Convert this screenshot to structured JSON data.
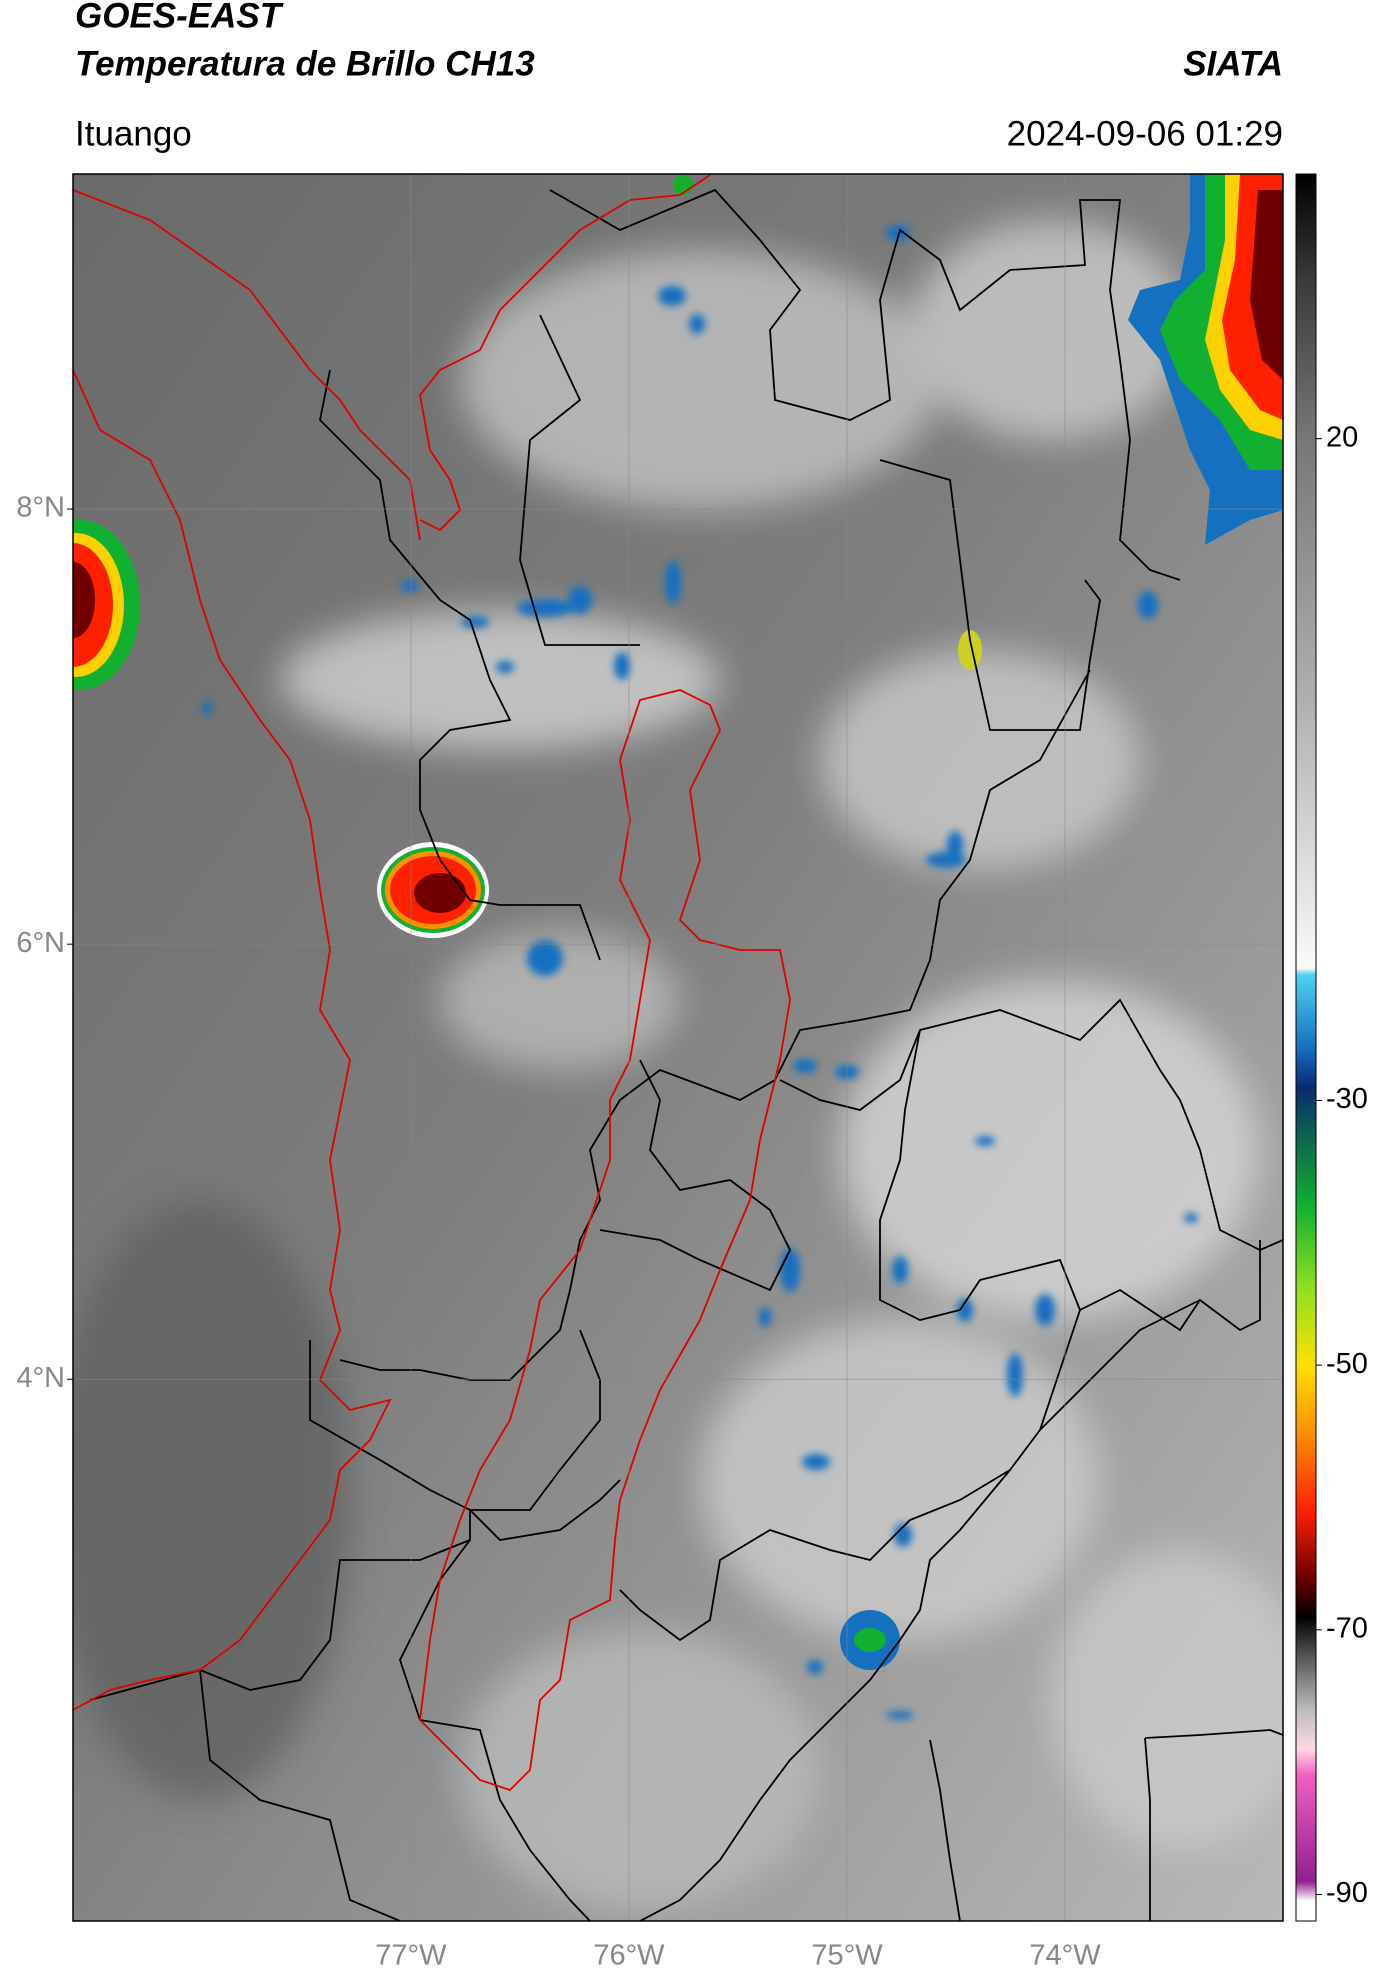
{
  "header": {
    "title": "GOES-EAST",
    "subtitle": "Temperatura de Brillo CH13",
    "source": "SIATA",
    "location": "Ituango",
    "datetime": "2024-09-06 01:29"
  },
  "map": {
    "xlim": [
      -78.55,
      -73.0
    ],
    "ylim": [
      1.51,
      9.54
    ],
    "xticks": [
      {
        "value": -77,
        "label": "77°W"
      },
      {
        "value": -76,
        "label": "76°W"
      },
      {
        "value": -75,
        "label": "75°W"
      },
      {
        "value": -74,
        "label": "74°W"
      }
    ],
    "yticks": [
      {
        "value": 4,
        "label": "4°N"
      },
      {
        "value": 6,
        "label": "6°N"
      },
      {
        "value": 8,
        "label": "8°N"
      }
    ],
    "grid": true
  },
  "colorbar": {
    "lim": [
      -92,
      40
    ],
    "ticks": [
      20,
      -30,
      -50,
      -70,
      -90
    ],
    "colormap": [
      {
        "value": 40,
        "color": "#000000"
      },
      {
        "value": 32,
        "color": "#3a3a3a"
      },
      {
        "value": 20,
        "color": "#777777"
      },
      {
        "value": 0,
        "color": "#b0b0b0"
      },
      {
        "value": -20,
        "color": "#fafafa"
      },
      {
        "value": -20.5,
        "color": "#4fd3f0"
      },
      {
        "value": -26,
        "color": "#1570c0"
      },
      {
        "value": -29,
        "color": "#0a2a70"
      },
      {
        "value": -32,
        "color": "#0b5a55"
      },
      {
        "value": -38,
        "color": "#12b030"
      },
      {
        "value": -44,
        "color": "#8ae020"
      },
      {
        "value": -50,
        "color": "#ffe000"
      },
      {
        "value": -55,
        "color": "#ff9000"
      },
      {
        "value": -61,
        "color": "#ff2000"
      },
      {
        "value": -66,
        "color": "#700000"
      },
      {
        "value": -69,
        "color": "#000000"
      },
      {
        "value": -72,
        "color": "#555555"
      },
      {
        "value": -76,
        "color": "#bbbbbb"
      },
      {
        "value": -79,
        "color": "#ffd8e4"
      },
      {
        "value": -81,
        "color": "#f060c0"
      },
      {
        "value": -89,
        "color": "#902090"
      },
      {
        "value": -90.5,
        "color": "#ffffff"
      },
      {
        "value": -92,
        "color": "#ffffff"
      }
    ]
  }
}
